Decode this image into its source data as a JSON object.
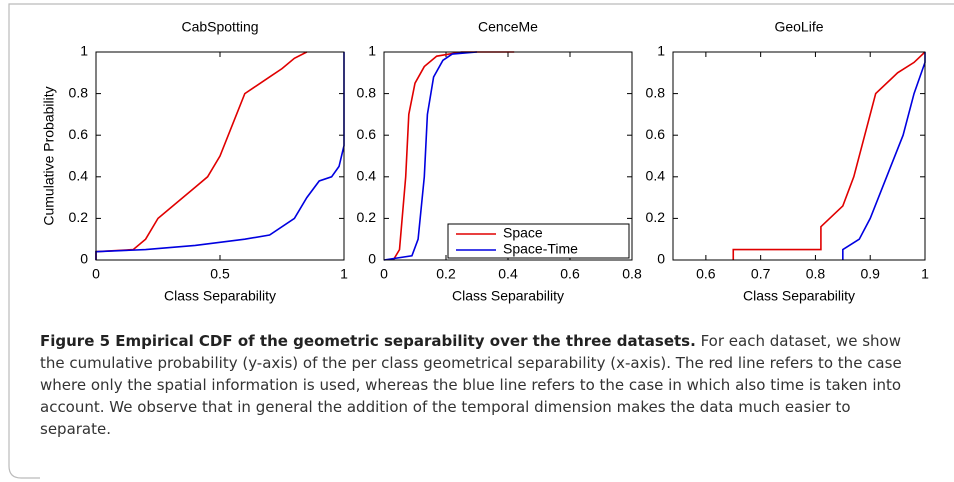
{
  "chart_data": [
    {
      "type": "line",
      "title": "CabSpotting",
      "x_label": "Class Separability",
      "y_label": "Cumulative Probability",
      "xlim": [
        0,
        1
      ],
      "xticks": [
        0,
        0.5,
        1
      ],
      "ylim": [
        0,
        1
      ],
      "yticks": [
        0,
        0.2,
        0.4,
        0.6,
        0.8,
        1
      ],
      "series": [
        {
          "name": "Space",
          "color": "#e00000",
          "x": [
            0,
            0,
            0.15,
            0.2,
            0.25,
            0.3,
            0.35,
            0.4,
            0.45,
            0.5,
            0.55,
            0.6,
            0.65,
            0.7,
            0.75,
            0.8,
            0.85
          ],
          "values": [
            0,
            0.04,
            0.05,
            0.1,
            0.2,
            0.25,
            0.3,
            0.35,
            0.4,
            0.5,
            0.65,
            0.8,
            0.84,
            0.88,
            0.92,
            0.97,
            1
          ]
        },
        {
          "name": "Space-Time",
          "color": "#0000e0",
          "x": [
            0,
            0,
            0.2,
            0.4,
            0.6,
            0.7,
            0.8,
            0.85,
            0.9,
            0.95,
            0.98,
            1,
            1
          ],
          "values": [
            0,
            0.04,
            0.05,
            0.07,
            0.1,
            0.12,
            0.2,
            0.3,
            0.38,
            0.4,
            0.45,
            0.55,
            1
          ]
        }
      ]
    },
    {
      "type": "line",
      "title": "CenceMe",
      "x_label": "Class Separability",
      "legend": "lower right",
      "xlim": [
        0,
        0.8
      ],
      "xticks": [
        0,
        0.2,
        0.4,
        0.6,
        0.8
      ],
      "ylim": [
        0,
        1
      ],
      "yticks": [
        0,
        0.2,
        0.4,
        0.6,
        0.8,
        1
      ],
      "series": [
        {
          "name": "Space",
          "color": "#e00000",
          "x": [
            0.03,
            0.05,
            0.07,
            0.08,
            0.1,
            0.13,
            0.17,
            0.25,
            0.42
          ],
          "values": [
            0,
            0.05,
            0.4,
            0.7,
            0.85,
            0.93,
            0.98,
            1,
            1
          ]
        },
        {
          "name": "Space-Time",
          "color": "#0000e0",
          "x": [
            0,
            0.09,
            0.11,
            0.13,
            0.14,
            0.16,
            0.19,
            0.22,
            0.3
          ],
          "values": [
            0,
            0.02,
            0.1,
            0.4,
            0.7,
            0.88,
            0.96,
            0.99,
            1
          ]
        }
      ]
    },
    {
      "type": "line",
      "title": "GeoLife",
      "x_label": "Class Separability",
      "xlim": [
        0.54,
        1
      ],
      "xticks": [
        0.6,
        0.7,
        0.8,
        0.9,
        1
      ],
      "ylim": [
        0,
        1
      ],
      "yticks": [
        0,
        0.2,
        0.4,
        0.6,
        0.8,
        1
      ],
      "series": [
        {
          "name": "Space",
          "color": "#e00000",
          "x": [
            0.65,
            0.65,
            0.81,
            0.81,
            0.85,
            0.87,
            0.89,
            0.91,
            0.95,
            0.98,
            1
          ],
          "values": [
            0,
            0.05,
            0.05,
            0.16,
            0.26,
            0.4,
            0.6,
            0.8,
            0.9,
            0.95,
            1
          ]
        },
        {
          "name": "Space-Time",
          "color": "#0000e0",
          "x": [
            0.85,
            0.85,
            0.88,
            0.9,
            0.93,
            0.96,
            0.98,
            1,
            1
          ],
          "values": [
            0,
            0.05,
            0.1,
            0.2,
            0.4,
            0.6,
            0.8,
            0.95,
            1
          ]
        }
      ]
    }
  ],
  "caption": {
    "title": "Figure 5  Empirical CDF of the geometric separability over the three datasets.",
    "text": "For each dataset, we show the cumulative probability (y-axis) of the per class geometrical separability (x-axis). The red line refers to the case where only the spatial information is used, whereas the blue line refers to the case in which also time is taken into account. We observe that in general the addition of the temporal dimension makes the data much easier to separate."
  }
}
